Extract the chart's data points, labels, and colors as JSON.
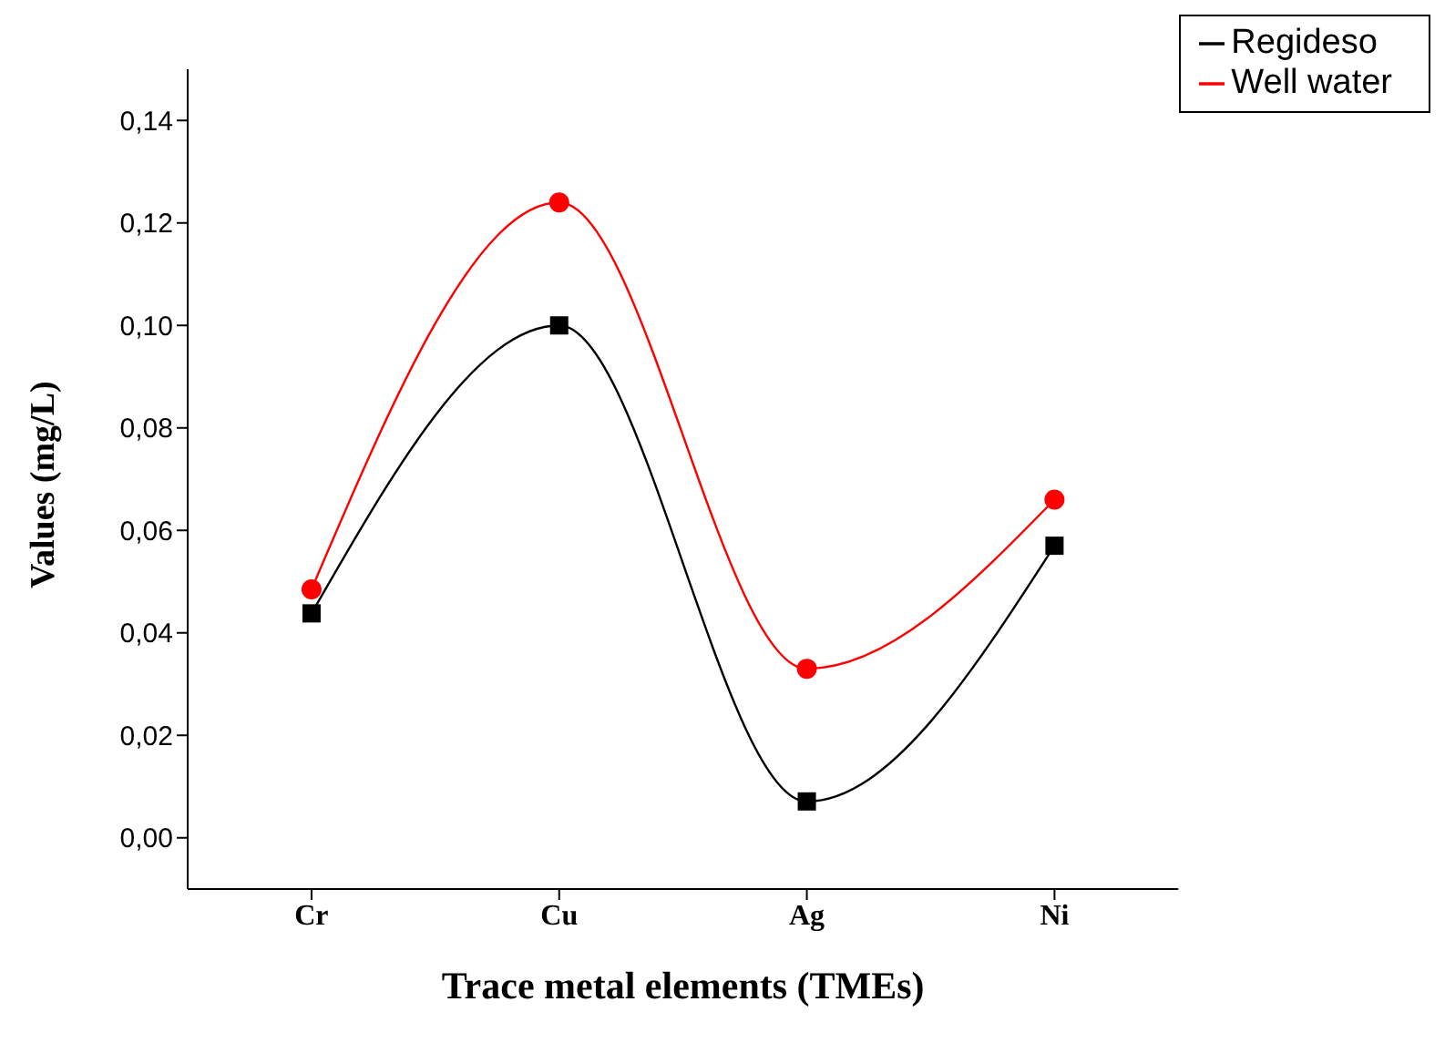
{
  "chart_data": {
    "type": "line",
    "xlabel": "Trace metal elements (TMEs)",
    "ylabel": "Values (mg/L)",
    "categories": [
      "Cr",
      "Cu",
      "Ag",
      "Ni"
    ],
    "series": [
      {
        "name": "Regideso",
        "color": "#000000",
        "marker": "square",
        "values": [
          0.0438,
          0.1,
          0.0071,
          0.057
        ]
      },
      {
        "name": "Well water",
        "color": "#ff0000",
        "marker": "circle",
        "values": [
          0.0485,
          0.124,
          0.033,
          0.066
        ]
      }
    ],
    "ylim": [
      -0.01,
      0.15
    ],
    "yticks": [
      {
        "value": 0,
        "label": "0,00"
      },
      {
        "value": 0.02,
        "label": "0,02"
      },
      {
        "value": 0.04,
        "label": "0,04"
      },
      {
        "value": 0.06,
        "label": "0,06"
      },
      {
        "value": 0.08,
        "label": "0,08"
      },
      {
        "value": 0.1,
        "label": "0,10"
      },
      {
        "value": 0.12,
        "label": "0,12"
      },
      {
        "value": 0.14,
        "label": "0,14"
      }
    ],
    "grid": false,
    "legend": "top right",
    "line_style": "solid"
  }
}
